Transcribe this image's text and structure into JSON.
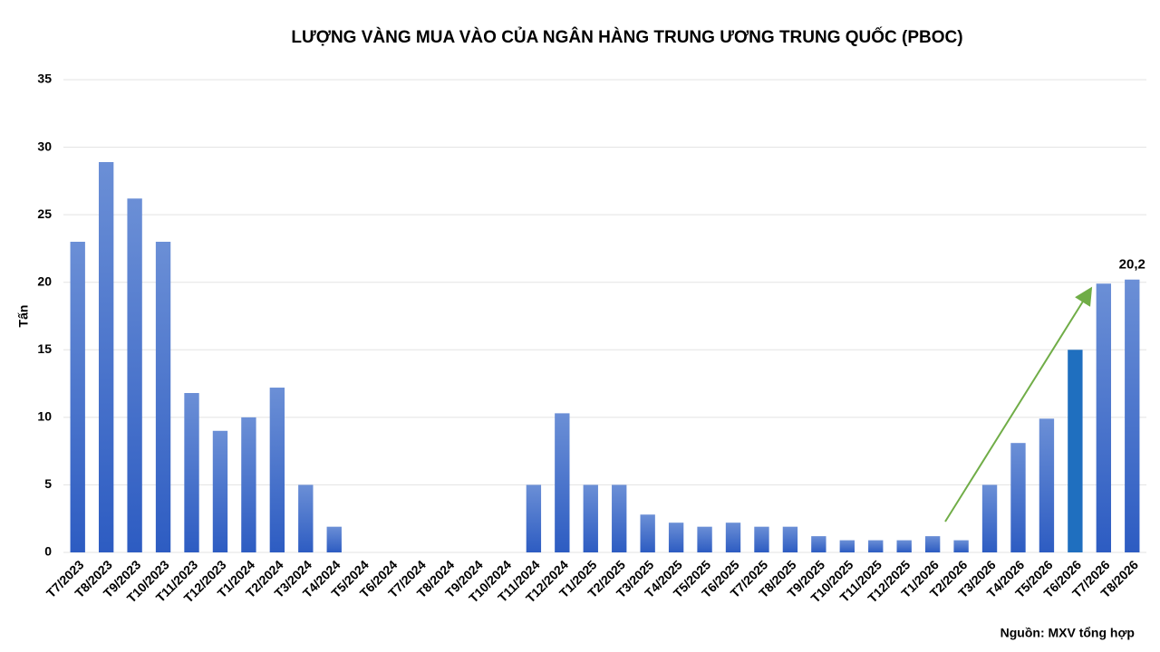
{
  "chart_data": {
    "type": "bar",
    "title": "LƯỢNG VÀNG MUA VÀO CỦA NGÂN HÀNG TRUNG ƯƠNG TRUNG QUỐC (PBOC)",
    "y_label": "Tấn",
    "source": "Nguồn: MXV tổng hợp",
    "categories": [
      "T7/2023",
      "T8/2023",
      "T9/2023",
      "T10/2023",
      "T11/2023",
      "T12/2023",
      "T1/2024",
      "T2/2024",
      "T3/2024",
      "T4/2024",
      "T5/2024",
      "T6/2024",
      "T7/2024",
      "T8/2024",
      "T9/2024",
      "T10/2024",
      "T11/2024",
      "T12/2024",
      "T1/2025",
      "T2/2025",
      "T3/2025",
      "T4/2025",
      "T5/2025",
      "T6/2025",
      "T7/2025",
      "T8/2025",
      "T9/2025",
      "T10/2025",
      "T11/2025",
      "T12/2025",
      "T1/2026",
      "T2/2026",
      "T3/2026",
      "T4/2026",
      "T5/2026",
      "T6/2026",
      "T7/2026",
      "T8/2026"
    ],
    "values": [
      23,
      28.9,
      26.2,
      23,
      11.8,
      9,
      10,
      12.2,
      5,
      1.9,
      0,
      0,
      0,
      0,
      0,
      0,
      5,
      10.3,
      5,
      5,
      2.8,
      2.2,
      1.9,
      2.2,
      1.9,
      1.9,
      1.2,
      0.9,
      0.9,
      0.9,
      1.2,
      0.9,
      5,
      8.1,
      9.9,
      15,
      19.9,
      20.2
    ],
    "value_labels": [
      null,
      null,
      null,
      null,
      null,
      null,
      null,
      null,
      null,
      null,
      null,
      null,
      null,
      null,
      null,
      null,
      null,
      null,
      null,
      null,
      null,
      null,
      null,
      null,
      null,
      null,
      null,
      null,
      null,
      null,
      null,
      null,
      null,
      null,
      null,
      null,
      null,
      "20,2"
    ],
    "color": "#3a66c8",
    "highlight_category": "T6/2026",
    "highlight_color": "#1f6fbf",
    "ylim": [
      0,
      35
    ],
    "yticks": [
      0,
      5,
      10,
      15,
      20,
      25,
      30,
      35
    ],
    "grid": true
  }
}
